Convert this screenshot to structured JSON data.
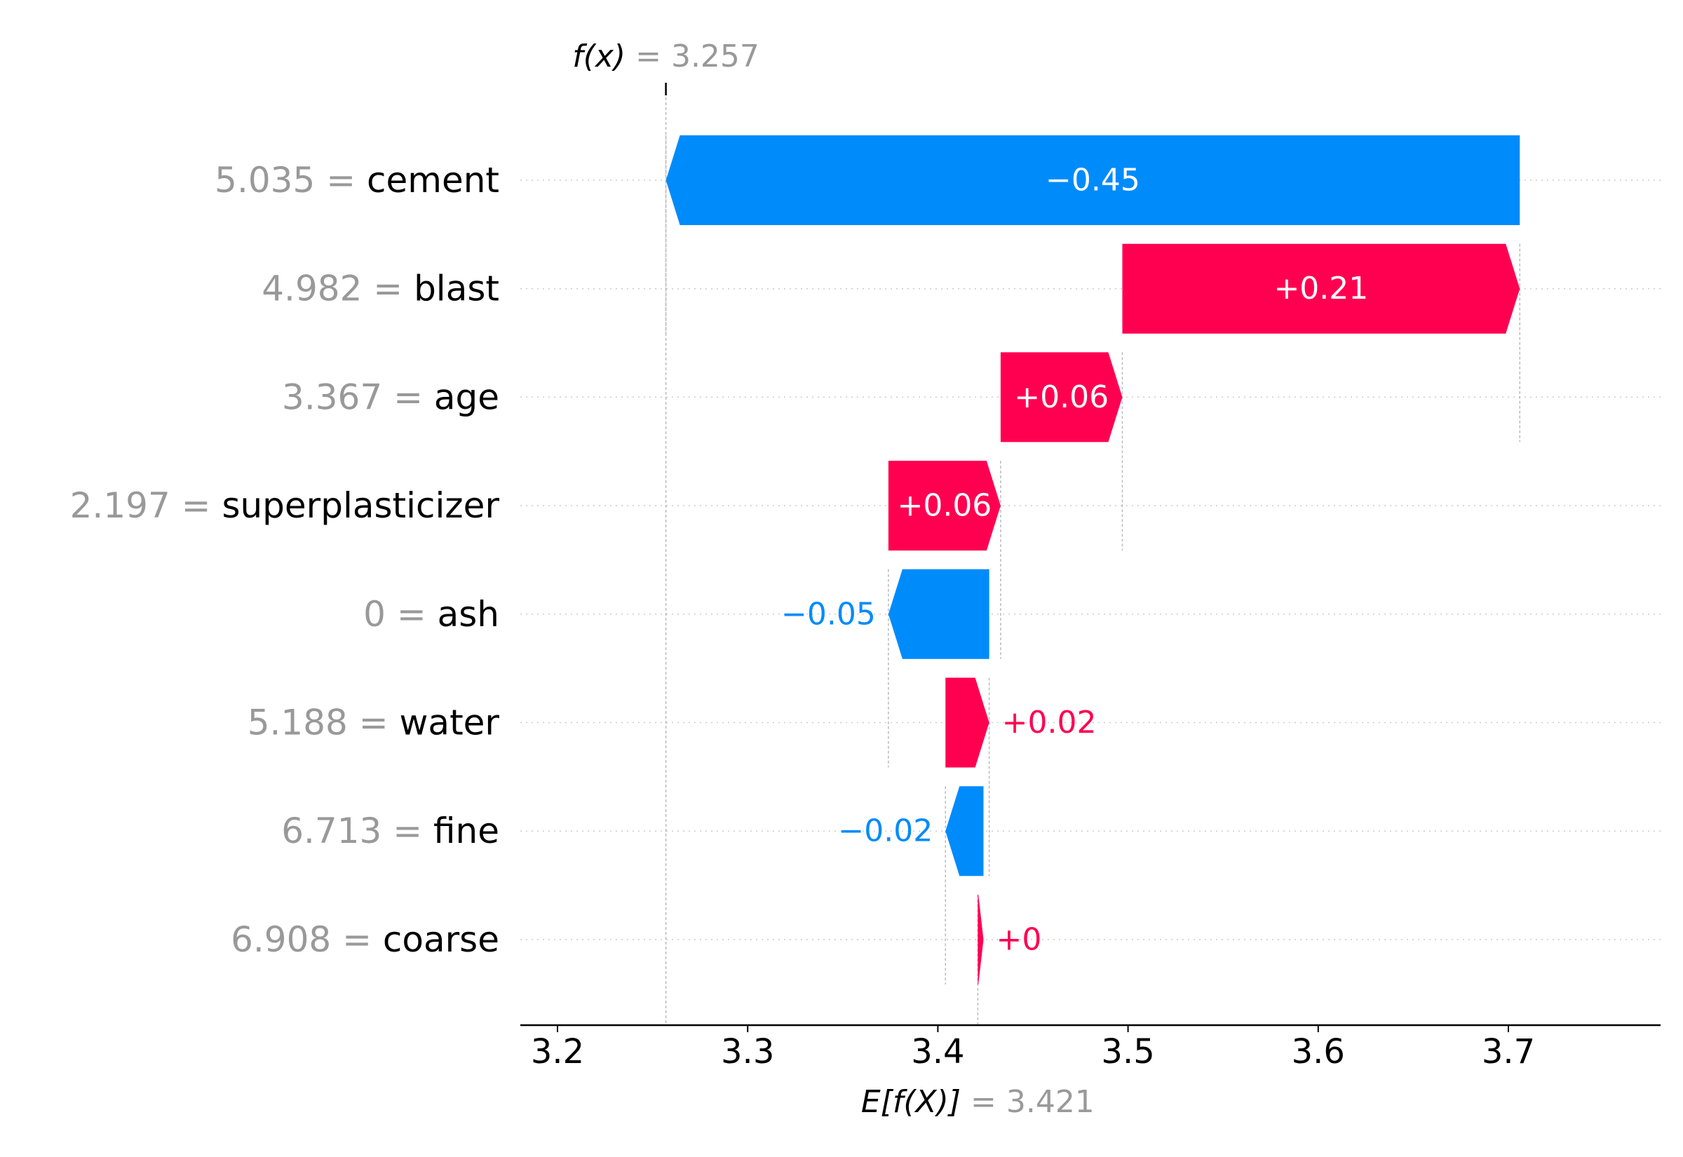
{
  "chart_data": {
    "type": "waterfall",
    "title": "",
    "xlabel": "",
    "ylabel": "",
    "xlim": [
      3.18,
      3.78
    ],
    "xticks": [
      3.2,
      3.3,
      3.4,
      3.5,
      3.6,
      3.7
    ],
    "tick_labels": [
      "3.2",
      "3.3",
      "3.4",
      "3.5",
      "3.6",
      "3.7"
    ],
    "fx": {
      "label": "f(x)",
      "eq": "=",
      "value": "3.257",
      "x": 3.257
    },
    "expected": {
      "label": "E[f(X)]",
      "eq": "=",
      "value": "3.421",
      "x": 3.421
    },
    "features": [
      {
        "value_text": "5.035",
        "name": "cement",
        "shap": -0.45,
        "label": "−0.45",
        "start": 3.706,
        "end": 3.257
      },
      {
        "value_text": "4.982",
        "name": "blast",
        "shap": 0.21,
        "label": "+0.21",
        "start": 3.497,
        "end": 3.706
      },
      {
        "value_text": "3.367",
        "name": "age",
        "shap": 0.06,
        "label": "+0.06",
        "start": 3.433,
        "end": 3.497
      },
      {
        "value_text": "2.197",
        "name": "superplasticizer",
        "shap": 0.06,
        "label": "+0.06",
        "start": 3.374,
        "end": 3.433
      },
      {
        "value_text": "0",
        "name": "ash",
        "shap": -0.05,
        "label": "−0.05",
        "start": 3.427,
        "end": 3.374
      },
      {
        "value_text": "5.188",
        "name": "water",
        "shap": 0.02,
        "label": "+0.02",
        "start": 3.404,
        "end": 3.427
      },
      {
        "value_text": "6.713",
        "name": "fine",
        "shap": -0.02,
        "label": "−0.02",
        "start": 3.424,
        "end": 3.404
      },
      {
        "value_text": "6.908",
        "name": "coarse",
        "shap": 0.0,
        "label": "+0",
        "start": 3.421,
        "end": 3.424
      }
    ],
    "colors": {
      "positive": "#ff0051",
      "negative": "#008bfb",
      "value_gray": "#999999",
      "text": "#000000",
      "grid": "#cccccc"
    },
    "grid": true
  }
}
